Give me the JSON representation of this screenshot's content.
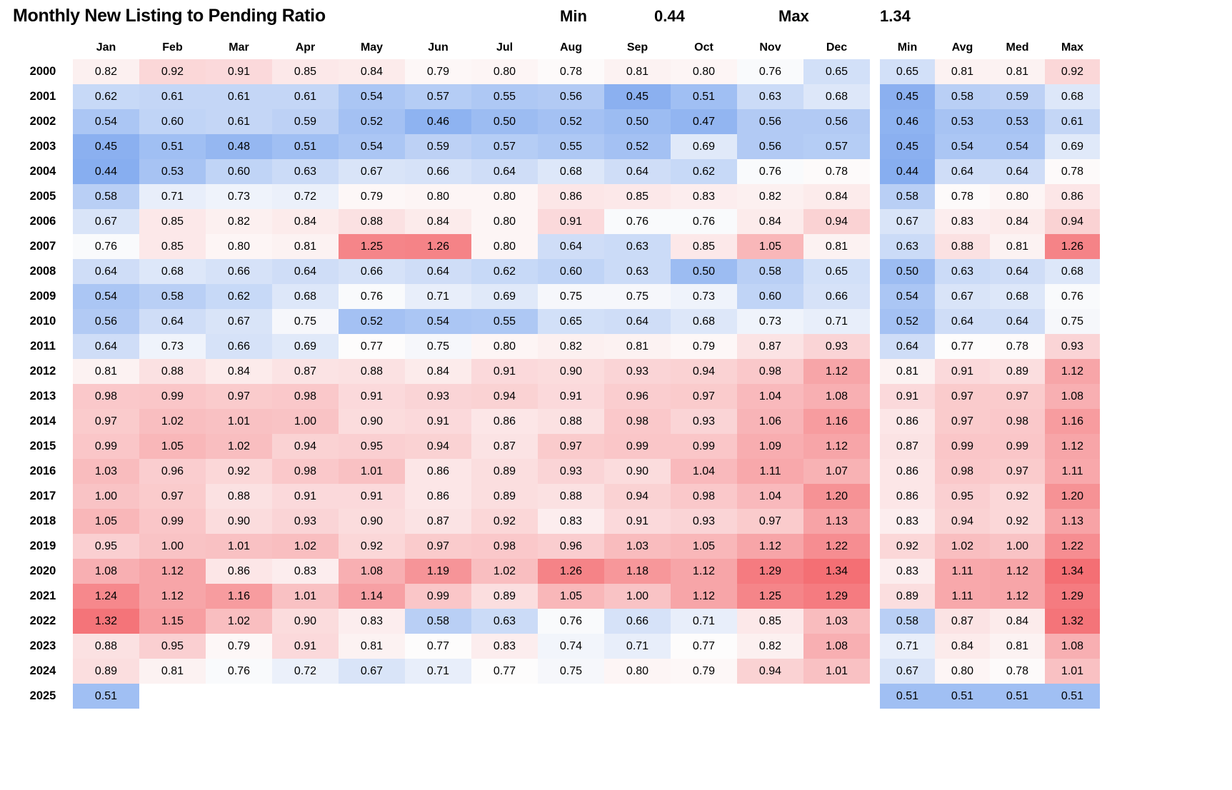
{
  "title": "Monthly New Listing to Pending Ratio",
  "header_stats": {
    "min_label": "Min",
    "min_value": "0.44",
    "max_label": "Max",
    "max_value": "1.34"
  },
  "colors": {
    "scale_low": "#87AEF0",
    "scale_mid": "#FDFCFC",
    "scale_high": "#F46F74",
    "text": "#000000",
    "background": "#FFFFFF"
  },
  "scale": {
    "min": 0.44,
    "mid": 0.77,
    "max": 1.34
  },
  "chart_data": {
    "type": "heatmap",
    "title": "Monthly New Listing to Pending Ratio",
    "annotations": {
      "overall_min": 0.44,
      "overall_max": 1.34
    },
    "x_categories": [
      "Jan",
      "Feb",
      "Mar",
      "Apr",
      "May",
      "Jun",
      "Jul",
      "Aug",
      "Sep",
      "Oct",
      "Nov",
      "Dec"
    ],
    "summary_columns": [
      "Min",
      "Avg",
      "Med",
      "Max"
    ],
    "y_categories": [
      "2000",
      "2001",
      "2002",
      "2003",
      "2004",
      "2005",
      "2006",
      "2007",
      "2008",
      "2009",
      "2010",
      "2011",
      "2012",
      "2013",
      "2014",
      "2015",
      "2016",
      "2017",
      "2018",
      "2019",
      "2020",
      "2021",
      "2022",
      "2023",
      "2024",
      "2025"
    ],
    "rows": [
      {
        "year": "2000",
        "values": [
          "0.82",
          "0.92",
          "0.91",
          "0.85",
          "0.84",
          "0.79",
          "0.80",
          "0.78",
          "0.81",
          "0.80",
          "0.76",
          "0.65"
        ],
        "summary": [
          "0.65",
          "0.81",
          "0.81",
          "0.92"
        ]
      },
      {
        "year": "2001",
        "values": [
          "0.62",
          "0.61",
          "0.61",
          "0.61",
          "0.54",
          "0.57",
          "0.55",
          "0.56",
          "0.45",
          "0.51",
          "0.63",
          "0.68"
        ],
        "summary": [
          "0.45",
          "0.58",
          "0.59",
          "0.68"
        ]
      },
      {
        "year": "2002",
        "values": [
          "0.54",
          "0.60",
          "0.61",
          "0.59",
          "0.52",
          "0.46",
          "0.50",
          "0.52",
          "0.50",
          "0.47",
          "0.56",
          "0.56"
        ],
        "summary": [
          "0.46",
          "0.53",
          "0.53",
          "0.61"
        ]
      },
      {
        "year": "2003",
        "values": [
          "0.45",
          "0.51",
          "0.48",
          "0.51",
          "0.54",
          "0.59",
          "0.57",
          "0.55",
          "0.52",
          "0.69",
          "0.56",
          "0.57"
        ],
        "summary": [
          "0.45",
          "0.54",
          "0.54",
          "0.69"
        ]
      },
      {
        "year": "2004",
        "values": [
          "0.44",
          "0.53",
          "0.60",
          "0.63",
          "0.67",
          "0.66",
          "0.64",
          "0.68",
          "0.64",
          "0.62",
          "0.76",
          "0.78"
        ],
        "summary": [
          "0.44",
          "0.64",
          "0.64",
          "0.78"
        ]
      },
      {
        "year": "2005",
        "values": [
          "0.58",
          "0.71",
          "0.73",
          "0.72",
          "0.79",
          "0.80",
          "0.80",
          "0.86",
          "0.85",
          "0.83",
          "0.82",
          "0.84"
        ],
        "summary": [
          "0.58",
          "0.78",
          "0.80",
          "0.86"
        ]
      },
      {
        "year": "2006",
        "values": [
          "0.67",
          "0.85",
          "0.82",
          "0.84",
          "0.88",
          "0.84",
          "0.80",
          "0.91",
          "0.76",
          "0.76",
          "0.84",
          "0.94"
        ],
        "summary": [
          "0.67",
          "0.83",
          "0.84",
          "0.94"
        ]
      },
      {
        "year": "2007",
        "values": [
          "0.76",
          "0.85",
          "0.80",
          "0.81",
          "1.25",
          "1.26",
          "0.80",
          "0.64",
          "0.63",
          "0.85",
          "1.05",
          "0.81"
        ],
        "summary": [
          "0.63",
          "0.88",
          "0.81",
          "1.26"
        ]
      },
      {
        "year": "2008",
        "values": [
          "0.64",
          "0.68",
          "0.66",
          "0.64",
          "0.66",
          "0.64",
          "0.62",
          "0.60",
          "0.63",
          "0.50",
          "0.58",
          "0.65"
        ],
        "summary": [
          "0.50",
          "0.63",
          "0.64",
          "0.68"
        ]
      },
      {
        "year": "2009",
        "values": [
          "0.54",
          "0.58",
          "0.62",
          "0.68",
          "0.76",
          "0.71",
          "0.69",
          "0.75",
          "0.75",
          "0.73",
          "0.60",
          "0.66"
        ],
        "summary": [
          "0.54",
          "0.67",
          "0.68",
          "0.76"
        ]
      },
      {
        "year": "2010",
        "values": [
          "0.56",
          "0.64",
          "0.67",
          "0.75",
          "0.52",
          "0.54",
          "0.55",
          "0.65",
          "0.64",
          "0.68",
          "0.73",
          "0.71"
        ],
        "summary": [
          "0.52",
          "0.64",
          "0.64",
          "0.75"
        ]
      },
      {
        "year": "2011",
        "values": [
          "0.64",
          "0.73",
          "0.66",
          "0.69",
          "0.77",
          "0.75",
          "0.80",
          "0.82",
          "0.81",
          "0.79",
          "0.87",
          "0.93"
        ],
        "summary": [
          "0.64",
          "0.77",
          "0.78",
          "0.93"
        ]
      },
      {
        "year": "2012",
        "values": [
          "0.81",
          "0.88",
          "0.84",
          "0.87",
          "0.88",
          "0.84",
          "0.91",
          "0.90",
          "0.93",
          "0.94",
          "0.98",
          "1.12"
        ],
        "summary": [
          "0.81",
          "0.91",
          "0.89",
          "1.12"
        ]
      },
      {
        "year": "2013",
        "values": [
          "0.98",
          "0.99",
          "0.97",
          "0.98",
          "0.91",
          "0.93",
          "0.94",
          "0.91",
          "0.96",
          "0.97",
          "1.04",
          "1.08"
        ],
        "summary": [
          "0.91",
          "0.97",
          "0.97",
          "1.08"
        ]
      },
      {
        "year": "2014",
        "values": [
          "0.97",
          "1.02",
          "1.01",
          "1.00",
          "0.90",
          "0.91",
          "0.86",
          "0.88",
          "0.98",
          "0.93",
          "1.06",
          "1.16"
        ],
        "summary": [
          "0.86",
          "0.97",
          "0.98",
          "1.16"
        ]
      },
      {
        "year": "2015",
        "values": [
          "0.99",
          "1.05",
          "1.02",
          "0.94",
          "0.95",
          "0.94",
          "0.87",
          "0.97",
          "0.99",
          "0.99",
          "1.09",
          "1.12"
        ],
        "summary": [
          "0.87",
          "0.99",
          "0.99",
          "1.12"
        ]
      },
      {
        "year": "2016",
        "values": [
          "1.03",
          "0.96",
          "0.92",
          "0.98",
          "1.01",
          "0.86",
          "0.89",
          "0.93",
          "0.90",
          "1.04",
          "1.11",
          "1.07"
        ],
        "summary": [
          "0.86",
          "0.98",
          "0.97",
          "1.11"
        ]
      },
      {
        "year": "2017",
        "values": [
          "1.00",
          "0.97",
          "0.88",
          "0.91",
          "0.91",
          "0.86",
          "0.89",
          "0.88",
          "0.94",
          "0.98",
          "1.04",
          "1.20"
        ],
        "summary": [
          "0.86",
          "0.95",
          "0.92",
          "1.20"
        ]
      },
      {
        "year": "2018",
        "values": [
          "1.05",
          "0.99",
          "0.90",
          "0.93",
          "0.90",
          "0.87",
          "0.92",
          "0.83",
          "0.91",
          "0.93",
          "0.97",
          "1.13"
        ],
        "summary": [
          "0.83",
          "0.94",
          "0.92",
          "1.13"
        ]
      },
      {
        "year": "2019",
        "values": [
          "0.95",
          "1.00",
          "1.01",
          "1.02",
          "0.92",
          "0.97",
          "0.98",
          "0.96",
          "1.03",
          "1.05",
          "1.12",
          "1.22"
        ],
        "summary": [
          "0.92",
          "1.02",
          "1.00",
          "1.22"
        ]
      },
      {
        "year": "2020",
        "values": [
          "1.08",
          "1.12",
          "0.86",
          "0.83",
          "1.08",
          "1.19",
          "1.02",
          "1.26",
          "1.18",
          "1.12",
          "1.29",
          "1.34"
        ],
        "summary": [
          "0.83",
          "1.11",
          "1.12",
          "1.34"
        ]
      },
      {
        "year": "2021",
        "values": [
          "1.24",
          "1.12",
          "1.16",
          "1.01",
          "1.14",
          "0.99",
          "0.89",
          "1.05",
          "1.00",
          "1.12",
          "1.25",
          "1.29"
        ],
        "summary": [
          "0.89",
          "1.11",
          "1.12",
          "1.29"
        ]
      },
      {
        "year": "2022",
        "values": [
          "1.32",
          "1.15",
          "1.02",
          "0.90",
          "0.83",
          "0.58",
          "0.63",
          "0.76",
          "0.66",
          "0.71",
          "0.85",
          "1.03"
        ],
        "summary": [
          "0.58",
          "0.87",
          "0.84",
          "1.32"
        ]
      },
      {
        "year": "2023",
        "values": [
          "0.88",
          "0.95",
          "0.79",
          "0.91",
          "0.81",
          "0.77",
          "0.83",
          "0.74",
          "0.71",
          "0.77",
          "0.82",
          "1.08"
        ],
        "summary": [
          "0.71",
          "0.84",
          "0.81",
          "1.08"
        ]
      },
      {
        "year": "2024",
        "values": [
          "0.89",
          "0.81",
          "0.76",
          "0.72",
          "0.67",
          "0.71",
          "0.77",
          "0.75",
          "0.80",
          "0.79",
          "0.94",
          "1.01"
        ],
        "summary": [
          "0.67",
          "0.80",
          "0.78",
          "1.01"
        ]
      },
      {
        "year": "2025",
        "values": [
          "0.51",
          null,
          null,
          null,
          null,
          null,
          null,
          null,
          null,
          null,
          null,
          null
        ],
        "summary": [
          "0.51",
          "0.51",
          "0.51",
          "0.51"
        ]
      }
    ]
  }
}
